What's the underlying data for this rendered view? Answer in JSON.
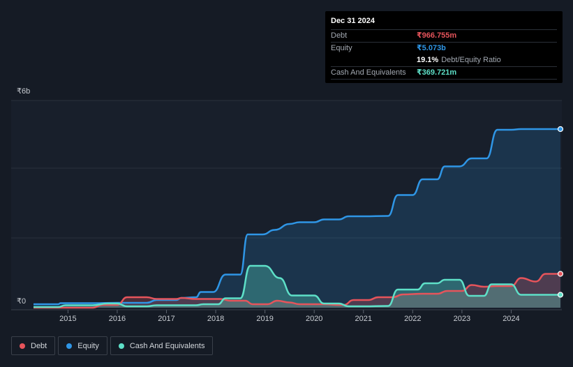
{
  "tooltip": {
    "date": "Dec 31 2024",
    "rows": [
      {
        "label": "Debt",
        "value": "₹966.755m"
      },
      {
        "label": "Equity",
        "value": "₹5.073b"
      },
      {
        "label": "",
        "value": "19.1%",
        "suffix": "Debt/Equity Ratio"
      },
      {
        "label": "Cash And Equivalents",
        "value": "₹369.721m"
      }
    ]
  },
  "legend": [
    {
      "label": "Debt",
      "color": "#e6545b"
    },
    {
      "label": "Equity",
      "color": "#2f96e6"
    },
    {
      "label": "Cash And Equivalents",
      "color": "#5ee0c8"
    }
  ],
  "chart_data": {
    "type": "area",
    "y_top_label": "₹6b",
    "y_bottom_label": "₹0",
    "ylim": [
      0,
      5.5
    ],
    "xlim": [
      2014.3,
      2025.0
    ],
    "x_ticks": [
      {
        "value": 2015,
        "label": "2015"
      },
      {
        "value": 2016,
        "label": "2016"
      },
      {
        "value": 2017,
        "label": "2017"
      },
      {
        "value": 2018,
        "label": "2018"
      },
      {
        "value": 2019,
        "label": "2019"
      },
      {
        "value": 2020,
        "label": "2020"
      },
      {
        "value": 2021,
        "label": "2021"
      },
      {
        "value": 2022,
        "label": "2022"
      },
      {
        "value": 2023,
        "label": "2023"
      },
      {
        "value": 2024,
        "label": "2024"
      }
    ],
    "gridlines": [
      2.0,
      4.0
    ],
    "series": [
      {
        "name": "Equity",
        "color": "#2f96e6",
        "points": [
          [
            2014.3,
            0.1
          ],
          [
            2014.8,
            0.1
          ],
          [
            2014.85,
            0.13
          ],
          [
            2015.5,
            0.13
          ],
          [
            2016.0,
            0.14
          ],
          [
            2016.6,
            0.14
          ],
          [
            2016.8,
            0.22
          ],
          [
            2017.2,
            0.22
          ],
          [
            2017.3,
            0.28
          ],
          [
            2017.6,
            0.3
          ],
          [
            2017.7,
            0.45
          ],
          [
            2017.95,
            0.45
          ],
          [
            2018.2,
            0.95
          ],
          [
            2018.5,
            0.95
          ],
          [
            2018.65,
            2.1
          ],
          [
            2018.95,
            2.1
          ],
          [
            2019.2,
            2.23
          ],
          [
            2019.5,
            2.4
          ],
          [
            2019.7,
            2.45
          ],
          [
            2020.0,
            2.45
          ],
          [
            2020.2,
            2.53
          ],
          [
            2020.5,
            2.53
          ],
          [
            2020.7,
            2.62
          ],
          [
            2021.0,
            2.62
          ],
          [
            2021.5,
            2.63
          ],
          [
            2021.7,
            3.23
          ],
          [
            2022.0,
            3.23
          ],
          [
            2022.2,
            3.68
          ],
          [
            2022.5,
            3.68
          ],
          [
            2022.65,
            4.05
          ],
          [
            2022.95,
            4.05
          ],
          [
            2023.2,
            4.28
          ],
          [
            2023.5,
            4.28
          ],
          [
            2023.72,
            5.1
          ],
          [
            2024.0,
            5.1
          ],
          [
            2024.2,
            5.12
          ],
          [
            2025.0,
            5.12
          ]
        ]
      },
      {
        "name": "Debt",
        "color": "#e6545b",
        "points": [
          [
            2014.3,
            0.0
          ],
          [
            2015.5,
            0.0
          ],
          [
            2015.7,
            0.08
          ],
          [
            2016.0,
            0.08
          ],
          [
            2016.2,
            0.3
          ],
          [
            2016.6,
            0.3
          ],
          [
            2016.8,
            0.25
          ],
          [
            2017.2,
            0.25
          ],
          [
            2017.3,
            0.28
          ],
          [
            2017.6,
            0.25
          ],
          [
            2018.1,
            0.25
          ],
          [
            2018.3,
            0.2
          ],
          [
            2018.6,
            0.2
          ],
          [
            2018.75,
            0.1
          ],
          [
            2019.05,
            0.1
          ],
          [
            2019.25,
            0.2
          ],
          [
            2019.5,
            0.15
          ],
          [
            2019.7,
            0.1
          ],
          [
            2020.2,
            0.1
          ],
          [
            2020.5,
            0.08
          ],
          [
            2020.6,
            0.08
          ],
          [
            2020.8,
            0.22
          ],
          [
            2021.1,
            0.22
          ],
          [
            2021.3,
            0.3
          ],
          [
            2021.6,
            0.3
          ],
          [
            2021.8,
            0.38
          ],
          [
            2022.2,
            0.4
          ],
          [
            2022.5,
            0.4
          ],
          [
            2022.7,
            0.48
          ],
          [
            2023.0,
            0.48
          ],
          [
            2023.2,
            0.65
          ],
          [
            2023.45,
            0.6
          ],
          [
            2023.7,
            0.62
          ],
          [
            2024.0,
            0.62
          ],
          [
            2024.2,
            0.85
          ],
          [
            2024.5,
            0.75
          ],
          [
            2024.7,
            0.97
          ],
          [
            2025.0,
            0.97
          ]
        ]
      },
      {
        "name": "Cash And Equivalents",
        "color": "#5ee0c8",
        "points": [
          [
            2014.3,
            0.02
          ],
          [
            2014.8,
            0.02
          ],
          [
            2014.95,
            0.07
          ],
          [
            2015.5,
            0.07
          ],
          [
            2015.8,
            0.12
          ],
          [
            2016.0,
            0.12
          ],
          [
            2016.2,
            0.04
          ],
          [
            2016.6,
            0.04
          ],
          [
            2016.8,
            0.07
          ],
          [
            2017.6,
            0.07
          ],
          [
            2017.75,
            0.1
          ],
          [
            2018.05,
            0.1
          ],
          [
            2018.2,
            0.27
          ],
          [
            2018.5,
            0.27
          ],
          [
            2018.7,
            1.2
          ],
          [
            2019.0,
            1.2
          ],
          [
            2019.3,
            0.85
          ],
          [
            2019.55,
            0.35
          ],
          [
            2020.0,
            0.35
          ],
          [
            2020.2,
            0.12
          ],
          [
            2020.5,
            0.12
          ],
          [
            2020.7,
            0.04
          ],
          [
            2021.0,
            0.04
          ],
          [
            2021.5,
            0.05
          ],
          [
            2021.7,
            0.52
          ],
          [
            2022.1,
            0.52
          ],
          [
            2022.25,
            0.7
          ],
          [
            2022.5,
            0.7
          ],
          [
            2022.65,
            0.8
          ],
          [
            2022.95,
            0.8
          ],
          [
            2023.15,
            0.34
          ],
          [
            2023.45,
            0.34
          ],
          [
            2023.6,
            0.67
          ],
          [
            2024.0,
            0.67
          ],
          [
            2024.2,
            0.37
          ],
          [
            2025.0,
            0.37
          ]
        ]
      }
    ]
  }
}
